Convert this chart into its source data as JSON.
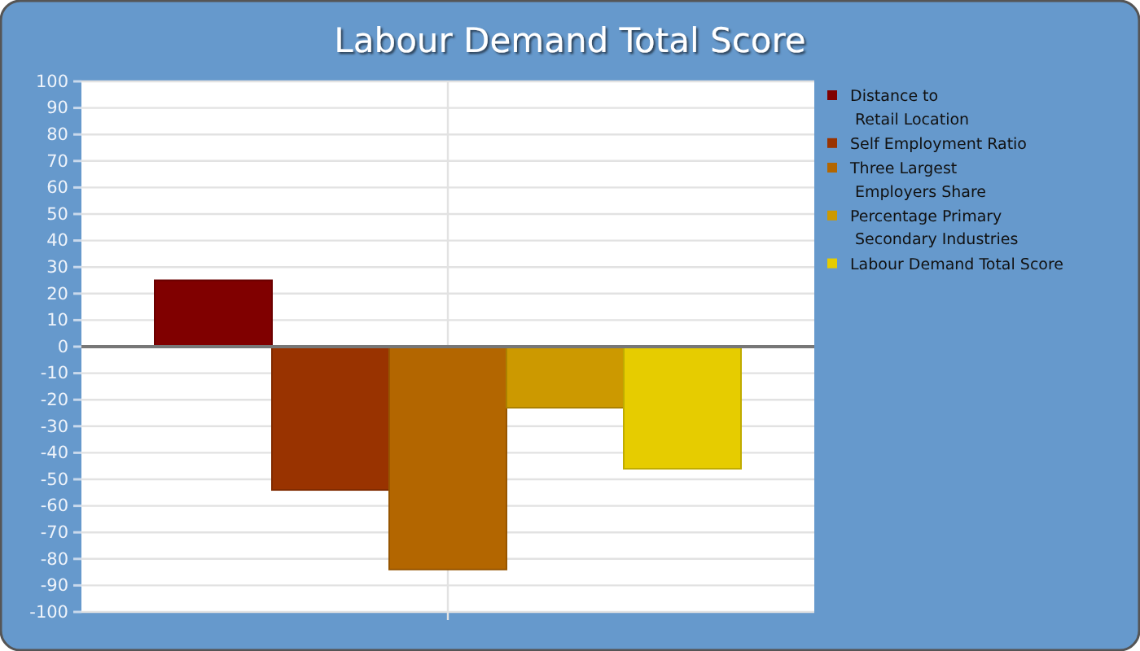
{
  "chart_data": {
    "type": "bar",
    "title": "Labour Demand Total Score",
    "categories": [
      null
    ],
    "series": [
      {
        "name": "Distance to\nRetail Location",
        "color": "#800000",
        "values": [
          25
        ]
      },
      {
        "name": "Self Employment Ratio",
        "color": "#993300",
        "values": [
          -54
        ]
      },
      {
        "name": "Three Largest\nEmployers Share",
        "color": "#b36600",
        "values": [
          -84
        ]
      },
      {
        "name": "Percentage Primary\nSecondary Industries",
        "color": "#cc9900",
        "values": [
          -23
        ]
      },
      {
        "name": "Labour Demand Total Score",
        "color": "#e6cc00",
        "values": [
          -46
        ]
      }
    ],
    "ylim": [
      -100,
      100
    ],
    "yticks": [
      -100,
      -90,
      -80,
      -70,
      -60,
      -50,
      -40,
      -30,
      -20,
      -10,
      0,
      10,
      20,
      30,
      40,
      50,
      60,
      70,
      80,
      90,
      100
    ],
    "grid": true,
    "legend": "top right"
  }
}
